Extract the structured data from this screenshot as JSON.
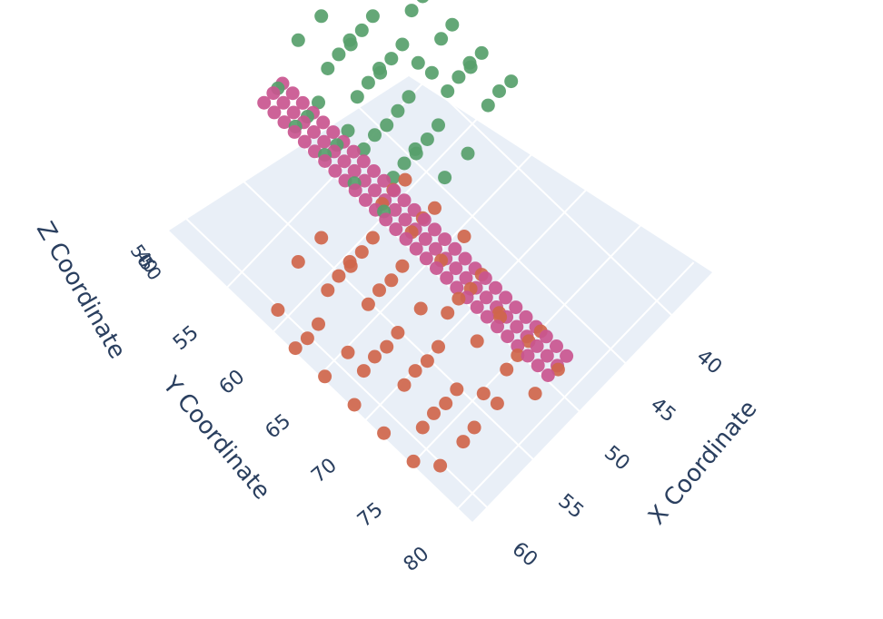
{
  "chart_data": {
    "type": "scatter3d",
    "title": "",
    "axes": {
      "x": {
        "label": "X Coordinate",
        "ticks": [
          "40",
          "45",
          "50",
          "55",
          "60"
        ],
        "range": [
          36,
          62
        ]
      },
      "y": {
        "label": "Y Coordinate",
        "ticks": [
          "55",
          "60",
          "65",
          "70",
          "75",
          "80"
        ],
        "range": [
          49,
          82
        ]
      },
      "z": {
        "label": "Z Coordinate",
        "ticks": [
          "50",
          "40",
          "50"
        ],
        "range": [
          40,
          60
        ]
      }
    },
    "grid": true,
    "legend": "none",
    "series": [
      {
        "color": "#57a06b",
        "x_range": [
          38,
          51
        ],
        "y_range": [
          50,
          64
        ],
        "z_range": [
          40,
          60
        ],
        "z_levels": [
          45,
          50,
          55
        ]
      },
      {
        "color": "#cf664b",
        "x_range": [
          50,
          63
        ],
        "y_range": [
          62,
          81
        ],
        "z_range": [
          40,
          60
        ],
        "z_levels": [
          45,
          50,
          55
        ]
      },
      {
        "color": "#c9558f",
        "x_range": [
          50,
          52
        ],
        "y_range": [
          50,
          81
        ],
        "z_range": [
          40,
          60
        ],
        "z_levels": [
          50
        ]
      }
    ]
  }
}
